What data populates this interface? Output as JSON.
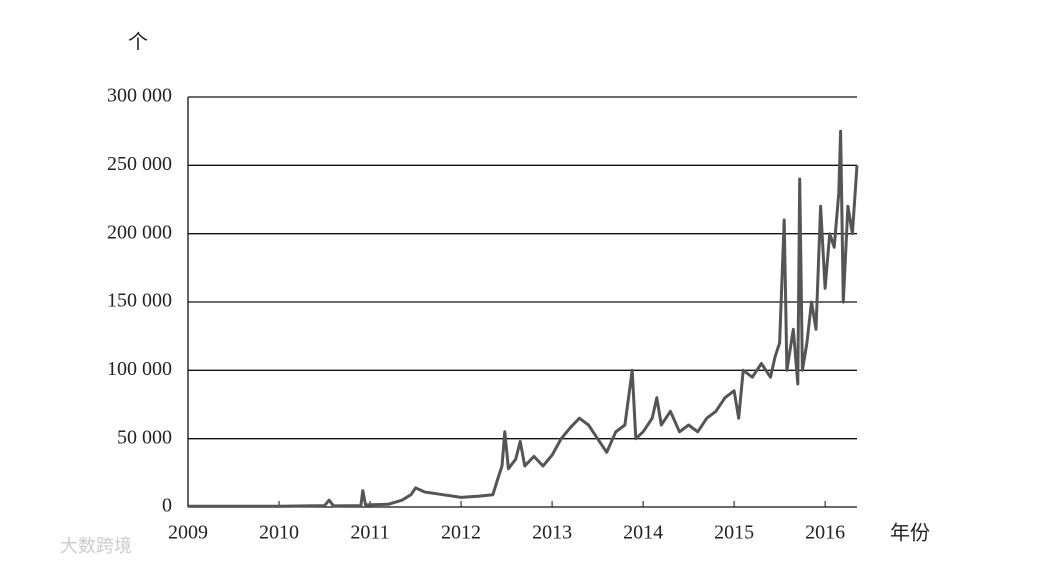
{
  "chart_data": {
    "type": "line",
    "y_unit": "个",
    "x_label": "年份",
    "watermark": "大数跨境",
    "x": [
      2009.0,
      2009.5,
      2010.0,
      2010.5,
      2010.55,
      2010.6,
      2010.9,
      2010.92,
      2010.95,
      2011.2,
      2011.35,
      2011.45,
      2011.5,
      2011.6,
      2011.8,
      2012.0,
      2012.2,
      2012.35,
      2012.4,
      2012.45,
      2012.48,
      2012.52,
      2012.6,
      2012.65,
      2012.7,
      2012.8,
      2012.9,
      2013.0,
      2013.1,
      2013.2,
      2013.3,
      2013.4,
      2013.5,
      2013.6,
      2013.7,
      2013.8,
      2013.88,
      2013.92,
      2014.0,
      2014.1,
      2014.15,
      2014.2,
      2014.3,
      2014.4,
      2014.5,
      2014.6,
      2014.7,
      2014.8,
      2014.9,
      2015.0,
      2015.05,
      2015.1,
      2015.2,
      2015.3,
      2015.4,
      2015.45,
      2015.5,
      2015.55,
      2015.58,
      2015.65,
      2015.7,
      2015.72,
      2015.75,
      2015.8,
      2015.85,
      2015.9,
      2015.95,
      2016.0,
      2016.05,
      2016.1,
      2016.15,
      2016.17,
      2016.2,
      2016.25,
      2016.3,
      2016.35
    ],
    "series": [
      {
        "name": "count",
        "color": "#555555",
        "values": [
          500,
          500,
          500,
          1000,
          5000,
          800,
          1000,
          12000,
          1500,
          2000,
          5000,
          9000,
          14000,
          11000,
          9000,
          7000,
          8000,
          9000,
          20000,
          30000,
          55000,
          28000,
          35000,
          48000,
          30000,
          37000,
          30000,
          38000,
          50000,
          58000,
          65000,
          60000,
          50000,
          40000,
          55000,
          60000,
          100000,
          50000,
          55000,
          65000,
          80000,
          60000,
          70000,
          55000,
          60000,
          55000,
          65000,
          70000,
          80000,
          85000,
          65000,
          100000,
          95000,
          105000,
          95000,
          110000,
          120000,
          210000,
          100000,
          130000,
          90000,
          240000,
          100000,
          120000,
          150000,
          130000,
          220000,
          160000,
          200000,
          190000,
          230000,
          275000,
          150000,
          220000,
          200000,
          250000
        ]
      }
    ],
    "xlim": [
      2009,
      2016.35
    ],
    "xticks": [
      2009,
      2010,
      2011,
      2012,
      2013,
      2014,
      2015,
      2016
    ],
    "ylim": [
      0,
      300000
    ],
    "yticks": [
      0,
      {
        "value": 50000,
        "label": "50 000"
      },
      {
        "value": 100000,
        "label": "100 000"
      },
      {
        "value": 150000,
        "label": "150 000"
      },
      {
        "value": 200000,
        "label": "200 000"
      },
      {
        "value": 250000,
        "label": "250 000"
      },
      {
        "value": 300000,
        "label": "300 000"
      }
    ],
    "grid": true
  }
}
